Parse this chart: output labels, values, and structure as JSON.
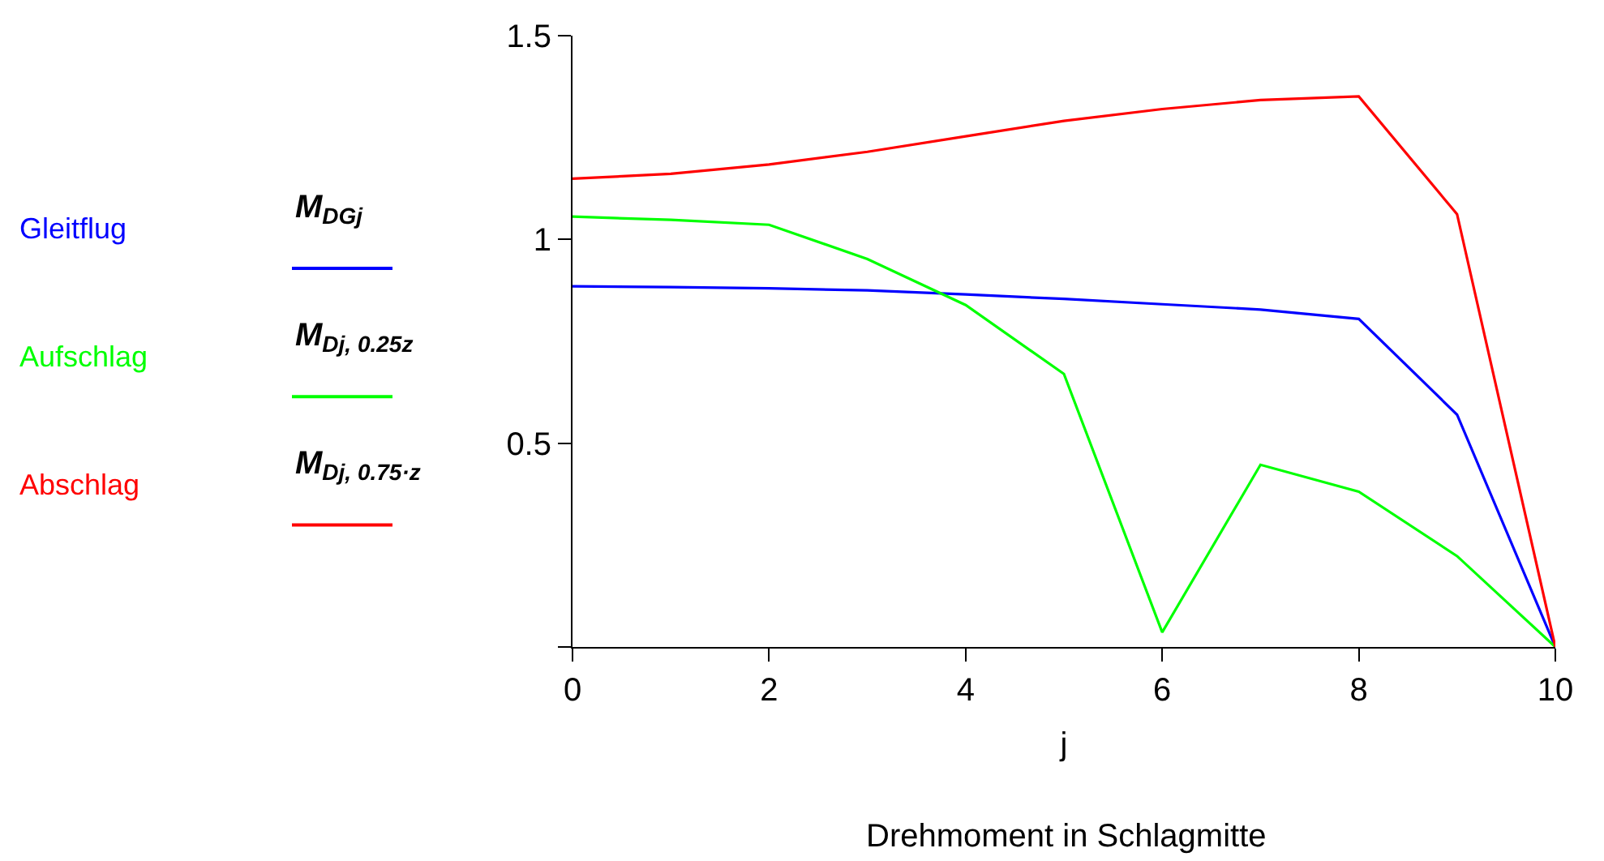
{
  "chart_data": {
    "type": "line",
    "title": "Drehmoment in Schlagmitte",
    "xlabel": "j",
    "x": [
      0,
      1,
      2,
      3,
      4,
      5,
      6,
      7,
      8,
      9,
      10
    ],
    "series": [
      {
        "name": "Gleitflug",
        "color": "#0000ff",
        "values": [
          0.885,
          0.883,
          0.88,
          0.875,
          0.865,
          0.854,
          0.841,
          0.828,
          0.805,
          0.57,
          0
        ]
      },
      {
        "name": "Aufschlag",
        "color": "#00ff00",
        "values": [
          1.056,
          1.048,
          1.036,
          0.952,
          0.839,
          0.67,
          0.036,
          0.447,
          0.381,
          0.223,
          0
        ]
      },
      {
        "name": "Abschlag",
        "color": "#ff0000",
        "values": [
          1.149,
          1.161,
          1.184,
          1.215,
          1.253,
          1.291,
          1.32,
          1.342,
          1.351,
          1.062,
          0
        ]
      }
    ],
    "annotations": [
      "M$_{DG}$$_{j}$",
      "M$_{D}$$_{j, 0.25z}$",
      "M$_{D}$$_{j, 0.75·z}$"
    ],
    "xlim": [
      0,
      10
    ],
    "xticks": [
      0,
      2,
      4,
      6,
      8,
      10
    ],
    "ylim": [
      0,
      1.5
    ],
    "yticks": [
      {
        "value": 0,
        "label": null
      },
      0.5,
      1,
      1.5
    ],
    "legend": "left",
    "marker": "none",
    "line_style": "solid"
  }
}
